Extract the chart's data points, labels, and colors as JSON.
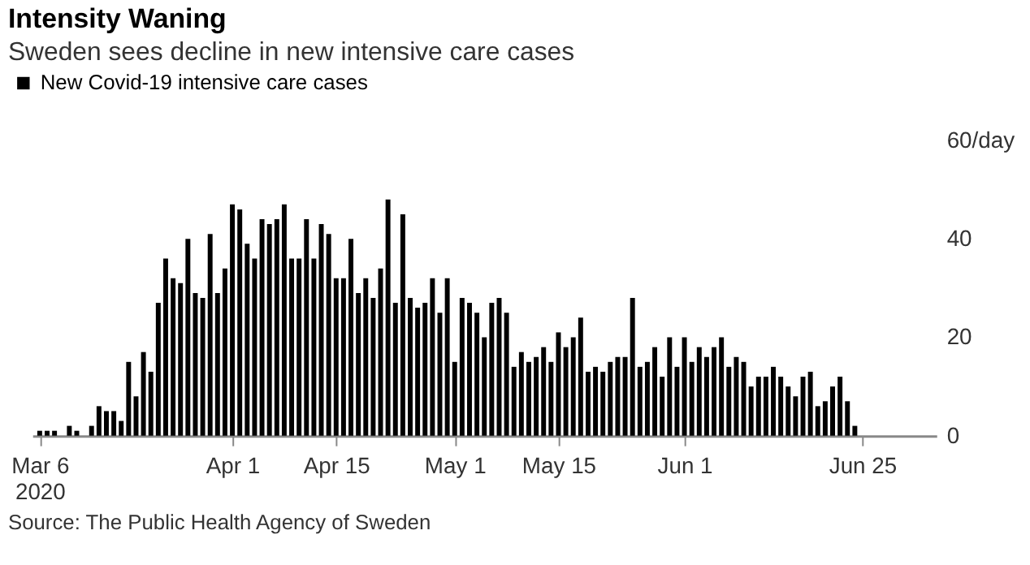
{
  "chart_data": {
    "type": "bar",
    "title": "Intensity Waning",
    "subtitle": "Sweden sees decline in new intensive care cases",
    "x": [
      "2020-03-06",
      "2020-03-07",
      "2020-03-08",
      "2020-03-09",
      "2020-03-10",
      "2020-03-11",
      "2020-03-12",
      "2020-03-13",
      "2020-03-14",
      "2020-03-15",
      "2020-03-16",
      "2020-03-17",
      "2020-03-18",
      "2020-03-19",
      "2020-03-20",
      "2020-03-21",
      "2020-03-22",
      "2020-03-23",
      "2020-03-24",
      "2020-03-25",
      "2020-03-26",
      "2020-03-27",
      "2020-03-28",
      "2020-03-29",
      "2020-03-30",
      "2020-03-31",
      "2020-04-01",
      "2020-04-02",
      "2020-04-03",
      "2020-04-04",
      "2020-04-05",
      "2020-04-06",
      "2020-04-07",
      "2020-04-08",
      "2020-04-09",
      "2020-04-10",
      "2020-04-11",
      "2020-04-12",
      "2020-04-13",
      "2020-04-14",
      "2020-04-15",
      "2020-04-16",
      "2020-04-17",
      "2020-04-18",
      "2020-04-19",
      "2020-04-20",
      "2020-04-21",
      "2020-04-22",
      "2020-04-23",
      "2020-04-24",
      "2020-04-25",
      "2020-04-26",
      "2020-04-27",
      "2020-04-28",
      "2020-04-29",
      "2020-04-30",
      "2020-05-01",
      "2020-05-02",
      "2020-05-03",
      "2020-05-04",
      "2020-05-05",
      "2020-05-06",
      "2020-05-07",
      "2020-05-08",
      "2020-05-09",
      "2020-05-10",
      "2020-05-11",
      "2020-05-12",
      "2020-05-13",
      "2020-05-14",
      "2020-05-15",
      "2020-05-16",
      "2020-05-17",
      "2020-05-18",
      "2020-05-19",
      "2020-05-20",
      "2020-05-21",
      "2020-05-22",
      "2020-05-23",
      "2020-05-24",
      "2020-05-25",
      "2020-05-26",
      "2020-05-27",
      "2020-05-28",
      "2020-05-29",
      "2020-05-30",
      "2020-05-31",
      "2020-06-01",
      "2020-06-02",
      "2020-06-03",
      "2020-06-04",
      "2020-06-05",
      "2020-06-06",
      "2020-06-07",
      "2020-06-08",
      "2020-06-09",
      "2020-06-10",
      "2020-06-11",
      "2020-06-12",
      "2020-06-13",
      "2020-06-14",
      "2020-06-15",
      "2020-06-16",
      "2020-06-17",
      "2020-06-18",
      "2020-06-19",
      "2020-06-20",
      "2020-06-21",
      "2020-06-22",
      "2020-06-23",
      "2020-06-24"
    ],
    "series": [
      {
        "name": "New Covid-19 intensive care cases",
        "color": "#000000",
        "values": [
          1,
          1,
          1,
          0,
          2,
          1,
          0,
          2,
          6,
          5,
          5,
          3,
          15,
          8,
          17,
          13,
          27,
          36,
          32,
          31,
          40,
          29,
          28,
          41,
          29,
          34,
          47,
          46,
          39,
          36,
          44,
          43,
          44,
          47,
          36,
          36,
          44,
          36,
          43,
          41,
          32,
          32,
          40,
          29,
          32,
          28,
          34,
          48,
          27,
          45,
          28,
          26,
          27,
          32,
          25,
          32,
          15,
          28,
          27,
          25,
          20,
          27,
          28,
          25,
          14,
          17,
          15,
          16,
          18,
          15,
          21,
          18,
          20,
          24,
          13,
          14,
          13,
          15,
          16,
          16,
          28,
          14,
          15,
          18,
          12,
          20,
          14,
          20,
          15,
          18,
          16,
          18,
          20,
          14,
          16,
          15,
          10,
          12,
          12,
          14,
          12,
          10,
          8,
          12,
          13,
          6,
          7,
          10,
          12,
          7,
          2
        ]
      }
    ],
    "xlim": [
      "2020-03-05",
      "2020-07-05"
    ],
    "xticks": [
      {
        "value": "2020-03-06",
        "label": "Mar 6\n2020"
      },
      {
        "value": "2020-04-01",
        "label": "Apr 1"
      },
      {
        "value": "2020-04-15",
        "label": "Apr 15"
      },
      {
        "value": "2020-05-01",
        "label": "May 1"
      },
      {
        "value": "2020-05-15",
        "label": "May 15"
      },
      {
        "value": "2020-06-01",
        "label": "Jun 1"
      },
      {
        "value": "2020-06-25",
        "label": "Jun 25"
      }
    ],
    "ylim": [
      0,
      60
    ],
    "yticks": [
      0,
      20,
      40,
      {
        "value": 60,
        "label": "60/day"
      }
    ],
    "grid": false,
    "legend": "top left",
    "annotations": [
      "Source: The Public Health Agency of Sweden"
    ]
  }
}
